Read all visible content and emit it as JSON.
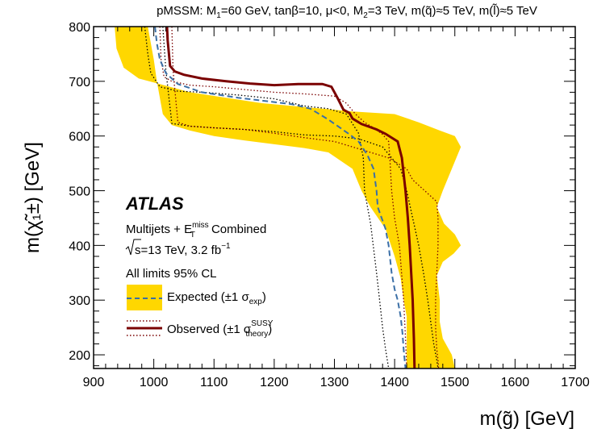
{
  "chart_data": {
    "type": "line",
    "title": "pMSSM: M₁=60 GeV, tanβ=10, μ<0, M₂=3 TeV, m(q̃)≈5 TeV, m(l̃)≈5 TeV",
    "title_parts": {
      "a": "pMSSM: M",
      "a_sub": "1",
      "b": "=60 GeV, tanβ=10, μ<0, M",
      "b_sub": "2",
      "c": "=3 TeV, m(",
      "c_q": "q̃",
      "d": ")≈5 TeV, m(",
      "d_l": "l̃",
      "e": ")≈5 TeV"
    },
    "xlabel": "m(g̃) [GeV]",
    "ylabel": "m(χ̃₁±) [GeV]",
    "xlim": [
      900,
      1700
    ],
    "ylim": [
      175,
      800
    ],
    "xticks": [
      900,
      1000,
      1100,
      1200,
      1300,
      1400,
      1500,
      1600,
      1700
    ],
    "yticks": [
      200,
      300,
      400,
      500,
      600,
      700,
      800
    ],
    "legend": {
      "position": "bottom-left",
      "experiment": "ATLAS",
      "analysis_a": "Multijets + E",
      "analysis_sup": "miss",
      "analysis_sub": "T",
      "analysis_b": " Combined",
      "energy_a": "s=13 TeV, 3.2 fb",
      "energy_sup": "−1",
      "cl": "All limits 95% CL",
      "expected_a": "Expected (±1 σ",
      "expected_sub": "exp",
      "expected_b": ")",
      "observed_a": "Observed (±1 σ",
      "observed_sup": "SUSY",
      "observed_sub": "theory",
      "observed_b": ")"
    },
    "colors": {
      "band": "#ffd700",
      "expected": "#3b6fa6",
      "observed": "#7a0000",
      "observed_band": "#7a0000"
    },
    "series": [
      {
        "role": "expected_band",
        "upper": [
          [
            935,
            800
          ],
          [
            938,
            760
          ],
          [
            950,
            725
          ],
          [
            975,
            705
          ],
          [
            1010,
            695
          ],
          [
            1060,
            680
          ],
          [
            1120,
            670
          ],
          [
            1180,
            660
          ],
          [
            1230,
            655
          ],
          [
            1280,
            650
          ],
          [
            1330,
            645
          ],
          [
            1400,
            640
          ],
          [
            1440,
            625
          ],
          [
            1475,
            610
          ],
          [
            1500,
            600
          ],
          [
            1510,
            580
          ],
          [
            1495,
            540
          ],
          [
            1480,
            500
          ],
          [
            1470,
            470
          ],
          [
            1482,
            440
          ],
          [
            1500,
            420
          ],
          [
            1510,
            400
          ],
          [
            1498,
            385
          ],
          [
            1480,
            370
          ],
          [
            1470,
            345
          ],
          [
            1475,
            300
          ],
          [
            1475,
            260
          ],
          [
            1480,
            230
          ],
          [
            1495,
            200
          ],
          [
            1500,
            175
          ]
        ],
        "lower": [
          [
            1420,
            175
          ],
          [
            1420,
            230
          ],
          [
            1420,
            270
          ],
          [
            1415,
            300
          ],
          [
            1410,
            340
          ],
          [
            1400,
            380
          ],
          [
            1385,
            430
          ],
          [
            1360,
            470
          ],
          [
            1345,
            500
          ],
          [
            1330,
            540
          ],
          [
            1290,
            570
          ],
          [
            1250,
            578
          ],
          [
            1200,
            585
          ],
          [
            1150,
            592
          ],
          [
            1100,
            600
          ],
          [
            1060,
            610
          ],
          [
            1030,
            620
          ],
          [
            1015,
            640
          ],
          [
            1005,
            700
          ],
          [
            1000,
            740
          ],
          [
            995,
            770
          ],
          [
            990,
            800
          ]
        ]
      },
      {
        "name": "Expected",
        "role": "expected",
        "x": [
          1002,
          1005,
          1010,
          1020,
          1040,
          1080,
          1140,
          1200,
          1230,
          1260,
          1290,
          1325,
          1340,
          1355,
          1365,
          1370,
          1372,
          1385,
          1390,
          1395,
          1400,
          1405,
          1410,
          1413,
          1415,
          1418
        ],
        "y": [
          800,
          770,
          740,
          715,
          695,
          680,
          670,
          662,
          658,
          650,
          630,
          603,
          590,
          565,
          540,
          500,
          470,
          430,
          400,
          350,
          320,
          300,
          270,
          240,
          210,
          175
        ]
      },
      {
        "name": "Expected -1σ",
        "role": "expected_minus",
        "x": [
          985,
          990,
          995,
          1010,
          1040,
          1080,
          1140,
          1200,
          1250,
          1290,
          1320,
          1340,
          1348,
          1350,
          1360,
          1370,
          1375,
          1380,
          1385,
          1390
        ],
        "y": [
          800,
          750,
          715,
          690,
          682,
          680,
          675,
          668,
          655,
          650,
          640,
          605,
          560,
          500,
          440,
          350,
          300,
          250,
          210,
          175
        ]
      },
      {
        "name": "Expected +1σ",
        "role": "expected_plus",
        "x": [
          1015,
          1020,
          1030,
          1060,
          1100,
          1150,
          1200,
          1250,
          1300,
          1340,
          1380,
          1410,
          1420,
          1430,
          1440,
          1448,
          1455,
          1460,
          1465,
          1470,
          1472
        ],
        "y": [
          800,
          720,
          623,
          618,
          615,
          612,
          608,
          602,
          600,
          595,
          580,
          540,
          500,
          450,
          400,
          350,
          300,
          260,
          220,
          190,
          175
        ]
      },
      {
        "name": "Observed",
        "role": "observed",
        "x": [
          1022,
          1023,
          1027,
          1035,
          1050,
          1080,
          1120,
          1160,
          1200,
          1240,
          1280,
          1295,
          1305,
          1315,
          1325,
          1330,
          1345,
          1370,
          1385,
          1405,
          1412,
          1418,
          1422,
          1425,
          1430,
          1432,
          1433
        ],
        "y": [
          800,
          775,
          728,
          718,
          712,
          705,
          700,
          696,
          693,
          695,
          695,
          690,
          670,
          648,
          642,
          632,
          622,
          612,
          604,
          590,
          560,
          500,
          450,
          400,
          300,
          230,
          175
        ]
      },
      {
        "name": "Observed -1σ",
        "role": "observed_minus",
        "x": [
          1010,
          1012,
          1017,
          1030,
          1060,
          1100,
          1150,
          1200,
          1250,
          1300,
          1320,
          1335,
          1350,
          1365,
          1380,
          1390,
          1392,
          1395,
          1400,
          1408,
          1415,
          1418,
          1420
        ],
        "y": [
          800,
          740,
          708,
          700,
          693,
          690,
          685,
          680,
          677,
          673,
          660,
          640,
          625,
          615,
          603,
          590,
          560,
          500,
          450,
          400,
          300,
          230,
          175
        ]
      },
      {
        "name": "Observed +1σ",
        "role": "observed_plus",
        "x": [
          1030,
          1032,
          1040,
          1060,
          1100,
          1150,
          1200,
          1250,
          1300,
          1330,
          1360,
          1390,
          1420,
          1430,
          1450,
          1465,
          1470,
          1472,
          1472,
          1470,
          1468,
          1468,
          1470,
          1472,
          1473
        ],
        "y": [
          800,
          720,
          625,
          618,
          615,
          612,
          605,
          597,
          590,
          580,
          570,
          560,
          540,
          520,
          500,
          485,
          480,
          450,
          400,
          350,
          300,
          250,
          210,
          190,
          175
        ]
      }
    ]
  }
}
